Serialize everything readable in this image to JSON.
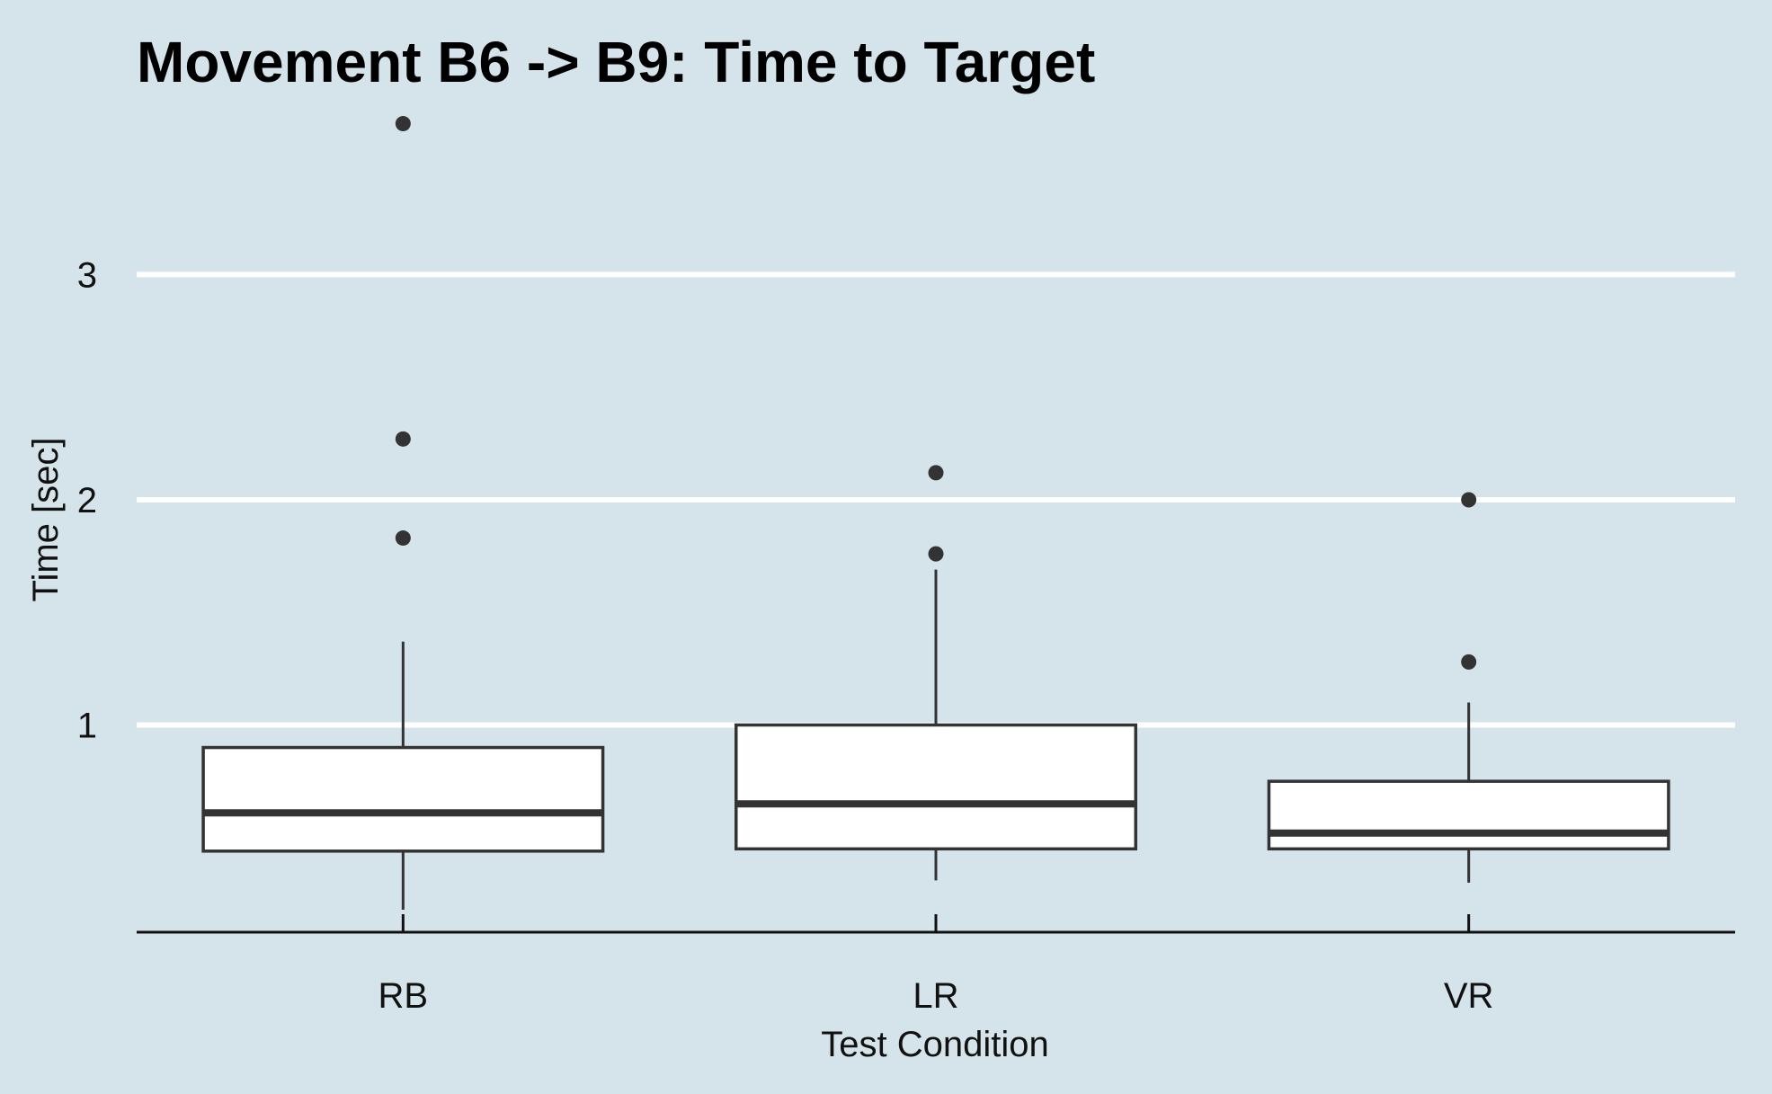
{
  "chart_data": {
    "type": "boxplot",
    "title": "Movement B6 -> B9: Time to Target",
    "xlabel": "Test Condition",
    "ylabel": "Time [sec]",
    "categories": [
      "RB",
      "LR",
      "VR"
    ],
    "y_ticks": [
      1,
      2,
      3
    ],
    "ylim": [
      0.08,
      3.78
    ],
    "grid": "horizontal major gridlines",
    "boxes": [
      {
        "category": "RB",
        "whisker_low": 0.18,
        "q1": 0.44,
        "median": 0.61,
        "q3": 0.9,
        "whisker_high": 1.37,
        "outliers": [
          1.83,
          2.27,
          3.67
        ]
      },
      {
        "category": "LR",
        "whisker_low": 0.31,
        "q1": 0.45,
        "median": 0.65,
        "q3": 1.0,
        "whisker_high": 1.69,
        "outliers": [
          1.76,
          2.12
        ]
      },
      {
        "category": "VR",
        "whisker_low": 0.3,
        "q1": 0.45,
        "median": 0.52,
        "q3": 0.75,
        "whisker_high": 1.1,
        "outliers": [
          1.28,
          2.0
        ]
      }
    ],
    "colors": {
      "background": "#d5e4eb",
      "grid": "#ffffff",
      "box_fill": "#ffffff",
      "box_stroke": "#333333",
      "axis": "#111111"
    }
  }
}
